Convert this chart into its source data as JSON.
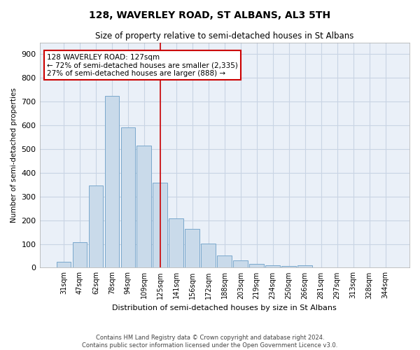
{
  "title": "128, WAVERLEY ROAD, ST ALBANS, AL3 5TH",
  "subtitle": "Size of property relative to semi-detached houses in St Albans",
  "xlabel": "Distribution of semi-detached houses by size in St Albans",
  "ylabel": "Number of semi-detached properties",
  "footer_line1": "Contains HM Land Registry data © Crown copyright and database right 2024.",
  "footer_line2": "Contains public sector information licensed under the Open Government Licence v3.0.",
  "categories": [
    "31sqm",
    "47sqm",
    "62sqm",
    "78sqm",
    "94sqm",
    "109sqm",
    "125sqm",
    "141sqm",
    "156sqm",
    "172sqm",
    "188sqm",
    "203sqm",
    "219sqm",
    "234sqm",
    "250sqm",
    "266sqm",
    "281sqm",
    "297sqm",
    "313sqm",
    "328sqm",
    "344sqm"
  ],
  "values": [
    25,
    108,
    348,
    725,
    593,
    515,
    358,
    208,
    165,
    103,
    50,
    32,
    15,
    10,
    8,
    10,
    0,
    0,
    0,
    0,
    0
  ],
  "bar_color": "#c9daea",
  "bar_edge_color": "#7aa8cc",
  "grid_color": "#c8d4e4",
  "background_color": "#eaf0f8",
  "annotation_text_line1": "128 WAVERLEY ROAD: 127sqm",
  "annotation_text_line2": "← 72% of semi-detached houses are smaller (2,335)",
  "annotation_text_line3": "27% of semi-detached houses are larger (888) →",
  "annotation_box_color": "#ffffff",
  "annotation_box_edge_color": "#cc0000",
  "red_line_color": "#cc0000",
  "ylim": [
    0,
    950
  ],
  "yticks": [
    0,
    100,
    200,
    300,
    400,
    500,
    600,
    700,
    800,
    900
  ],
  "red_line_x": 6.0
}
